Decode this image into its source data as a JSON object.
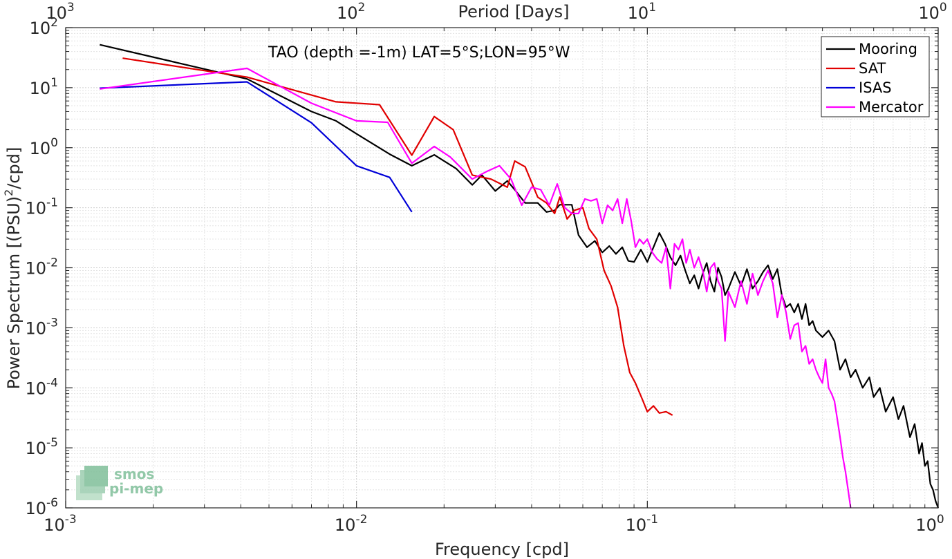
{
  "chart_data": {
    "type": "line",
    "title": "TAO (depth =-1m) LAT=5°S;LON=95°W",
    "xlabel": "Frequency [cpd]",
    "ylabel_main": "Power Spectrum [(PSU)",
    "ylabel_sup": "2",
    "ylabel_tail": "/cpd]",
    "top_xlabel": "Period [Days]",
    "x_scale": "log",
    "y_scale": "log",
    "xlim": [
      0.001,
      1
    ],
    "ylim": [
      1e-06,
      100
    ],
    "grid": true,
    "legend_position": "top-right",
    "x_ticks": [
      {
        "value": 0.001,
        "base": "10",
        "exp": "-3"
      },
      {
        "value": 0.01,
        "base": "10",
        "exp": "-2"
      },
      {
        "value": 0.1,
        "base": "10",
        "exp": "-1"
      },
      {
        "value": 1,
        "base": "10",
        "exp": "0"
      }
    ],
    "y_ticks": [
      {
        "value": 100,
        "base": "10",
        "exp": "2"
      },
      {
        "value": 10,
        "base": "10",
        "exp": "1"
      },
      {
        "value": 1,
        "base": "10",
        "exp": "0"
      },
      {
        "value": 0.1,
        "base": "10",
        "exp": "-1"
      },
      {
        "value": 0.01,
        "base": "10",
        "exp": "-2"
      },
      {
        "value": 0.001,
        "base": "10",
        "exp": "-3"
      },
      {
        "value": 0.0001,
        "base": "10",
        "exp": "-4"
      },
      {
        "value": 1e-05,
        "base": "10",
        "exp": "-5"
      },
      {
        "value": 1e-06,
        "base": "10",
        "exp": "-6"
      }
    ],
    "top_ticks": [
      {
        "value": 0.001,
        "base": "10",
        "exp": "3"
      },
      {
        "value": 0.01,
        "base": "10",
        "exp": "2"
      },
      {
        "value": 0.1,
        "base": "10",
        "exp": "1"
      },
      {
        "value": 1,
        "base": "10",
        "exp": "0"
      }
    ],
    "series": [
      {
        "name": "Mooring",
        "color": "#000000",
        "points": [
          [
            0.00131,
            52
          ],
          [
            0.0042,
            14
          ],
          [
            0.007,
            4.0
          ],
          [
            0.0085,
            2.8
          ],
          [
            0.01,
            1.7
          ],
          [
            0.013,
            0.78
          ],
          [
            0.0155,
            0.5
          ],
          [
            0.0185,
            0.76
          ],
          [
            0.022,
            0.45
          ],
          [
            0.025,
            0.24
          ],
          [
            0.027,
            0.35
          ],
          [
            0.03,
            0.19
          ],
          [
            0.033,
            0.28
          ],
          [
            0.035,
            0.2
          ],
          [
            0.038,
            0.12
          ],
          [
            0.042,
            0.12
          ],
          [
            0.045,
            0.085
          ],
          [
            0.048,
            0.09
          ],
          [
            0.05,
            0.112
          ],
          [
            0.055,
            0.112
          ],
          [
            0.058,
            0.035
          ],
          [
            0.062,
            0.022
          ],
          [
            0.066,
            0.028
          ],
          [
            0.07,
            0.018
          ],
          [
            0.074,
            0.023
          ],
          [
            0.078,
            0.017
          ],
          [
            0.082,
            0.022
          ],
          [
            0.086,
            0.013
          ],
          [
            0.09,
            0.0125
          ],
          [
            0.095,
            0.02
          ],
          [
            0.1,
            0.0125
          ],
          [
            0.105,
            0.022
          ],
          [
            0.11,
            0.038
          ],
          [
            0.115,
            0.025
          ],
          [
            0.12,
            0.015
          ],
          [
            0.125,
            0.011
          ],
          [
            0.13,
            0.016
          ],
          [
            0.135,
            0.009
          ],
          [
            0.14,
            0.0055
          ],
          [
            0.145,
            0.0075
          ],
          [
            0.15,
            0.0045
          ],
          [
            0.155,
            0.008
          ],
          [
            0.16,
            0.012
          ],
          [
            0.165,
            0.006
          ],
          [
            0.17,
            0.004
          ],
          [
            0.175,
            0.01
          ],
          [
            0.18,
            0.007
          ],
          [
            0.185,
            0.0035
          ],
          [
            0.19,
            0.0045
          ],
          [
            0.2,
            0.0085
          ],
          [
            0.21,
            0.005
          ],
          [
            0.22,
            0.0095
          ],
          [
            0.23,
            0.0045
          ],
          [
            0.24,
            0.006
          ],
          [
            0.25,
            0.0085
          ],
          [
            0.26,
            0.011
          ],
          [
            0.27,
            0.0065
          ],
          [
            0.28,
            0.0095
          ],
          [
            0.29,
            0.0035
          ],
          [
            0.3,
            0.0022
          ],
          [
            0.31,
            0.0025
          ],
          [
            0.32,
            0.0018
          ],
          [
            0.33,
            0.0025
          ],
          [
            0.34,
            0.0014
          ],
          [
            0.35,
            0.0025
          ],
          [
            0.36,
            0.0011
          ],
          [
            0.37,
            0.0013
          ],
          [
            0.38,
            0.0009
          ],
          [
            0.4,
            0.0007
          ],
          [
            0.42,
            0.0009
          ],
          [
            0.44,
            0.0006
          ],
          [
            0.46,
            0.0002
          ],
          [
            0.48,
            0.0003
          ],
          [
            0.5,
            0.00015
          ],
          [
            0.52,
            0.0002
          ],
          [
            0.55,
            0.0001
          ],
          [
            0.58,
            0.00015
          ],
          [
            0.6,
            7e-05
          ],
          [
            0.63,
            0.0001
          ],
          [
            0.66,
            4e-05
          ],
          [
            0.7,
            7e-05
          ],
          [
            0.73,
            3e-05
          ],
          [
            0.76,
            5e-05
          ],
          [
            0.8,
            1.5e-05
          ],
          [
            0.83,
            2.5e-05
          ],
          [
            0.86,
            8e-06
          ],
          [
            0.88,
            1.2e-05
          ],
          [
            0.9,
            5e-06
          ],
          [
            0.92,
            6e-06
          ],
          [
            0.94,
            2.5e-06
          ],
          [
            0.96,
            2e-06
          ],
          [
            0.98,
            1.3e-06
          ],
          [
            1.0,
            1e-06
          ]
        ]
      },
      {
        "name": "SAT",
        "color": "#e10000",
        "points": [
          [
            0.00157,
            31
          ],
          [
            0.0042,
            15
          ],
          [
            0.0085,
            5.8
          ],
          [
            0.012,
            5.2
          ],
          [
            0.0155,
            0.75
          ],
          [
            0.0185,
            3.3
          ],
          [
            0.0215,
            2.0
          ],
          [
            0.025,
            0.35
          ],
          [
            0.029,
            0.3
          ],
          [
            0.033,
            0.22
          ],
          [
            0.035,
            0.6
          ],
          [
            0.038,
            0.48
          ],
          [
            0.042,
            0.15
          ],
          [
            0.045,
            0.12
          ],
          [
            0.048,
            0.08
          ],
          [
            0.05,
            0.15
          ],
          [
            0.053,
            0.065
          ],
          [
            0.056,
            0.09
          ],
          [
            0.06,
            0.1
          ],
          [
            0.063,
            0.045
          ],
          [
            0.067,
            0.03
          ],
          [
            0.071,
            0.009
          ],
          [
            0.075,
            0.005
          ],
          [
            0.079,
            0.0022
          ],
          [
            0.083,
            0.0005
          ],
          [
            0.087,
            0.00018
          ],
          [
            0.091,
            0.00012
          ],
          [
            0.096,
            6.5e-05
          ],
          [
            0.1,
            4e-05
          ],
          [
            0.105,
            5e-05
          ],
          [
            0.11,
            3.8e-05
          ],
          [
            0.116,
            4e-05
          ],
          [
            0.122,
            3.5e-05
          ]
        ]
      },
      {
        "name": "ISAS",
        "color": "#0000d8",
        "points": [
          [
            0.00131,
            9.8
          ],
          [
            0.0042,
            12.5
          ],
          [
            0.007,
            2.6
          ],
          [
            0.01,
            0.5
          ],
          [
            0.013,
            0.32
          ],
          [
            0.0155,
            0.085
          ]
        ]
      },
      {
        "name": "Mercator",
        "color": "#ff00ff",
        "points": [
          [
            0.00131,
            9.5
          ],
          [
            0.0042,
            21
          ],
          [
            0.007,
            5.5
          ],
          [
            0.01,
            2.8
          ],
          [
            0.0128,
            2.65
          ],
          [
            0.0155,
            0.55
          ],
          [
            0.0185,
            1.05
          ],
          [
            0.021,
            0.7
          ],
          [
            0.025,
            0.3
          ],
          [
            0.028,
            0.4
          ],
          [
            0.031,
            0.5
          ],
          [
            0.034,
            0.3
          ],
          [
            0.037,
            0.11
          ],
          [
            0.04,
            0.22
          ],
          [
            0.043,
            0.2
          ],
          [
            0.046,
            0.11
          ],
          [
            0.049,
            0.25
          ],
          [
            0.052,
            0.1
          ],
          [
            0.055,
            0.08
          ],
          [
            0.058,
            0.08
          ],
          [
            0.061,
            0.14
          ],
          [
            0.064,
            0.13
          ],
          [
            0.067,
            0.14
          ],
          [
            0.07,
            0.055
          ],
          [
            0.073,
            0.11
          ],
          [
            0.076,
            0.09
          ],
          [
            0.079,
            0.14
          ],
          [
            0.082,
            0.055
          ],
          [
            0.085,
            0.14
          ],
          [
            0.088,
            0.06
          ],
          [
            0.091,
            0.022
          ],
          [
            0.094,
            0.03
          ],
          [
            0.097,
            0.025
          ],
          [
            0.1,
            0.03
          ],
          [
            0.104,
            0.018
          ],
          [
            0.108,
            0.014
          ],
          [
            0.112,
            0.012
          ],
          [
            0.116,
            0.022
          ],
          [
            0.12,
            0.0045
          ],
          [
            0.124,
            0.025
          ],
          [
            0.128,
            0.02
          ],
          [
            0.132,
            0.03
          ],
          [
            0.136,
            0.012
          ],
          [
            0.14,
            0.02
          ],
          [
            0.145,
            0.01
          ],
          [
            0.15,
            0.015
          ],
          [
            0.155,
            0.009
          ],
          [
            0.16,
            0.004
          ],
          [
            0.165,
            0.01
          ],
          [
            0.17,
            0.012
          ],
          [
            0.175,
            0.006
          ],
          [
            0.18,
            0.0045
          ],
          [
            0.185,
            0.0006
          ],
          [
            0.19,
            0.004
          ],
          [
            0.2,
            0.0022
          ],
          [
            0.21,
            0.006
          ],
          [
            0.22,
            0.0025
          ],
          [
            0.23,
            0.008
          ],
          [
            0.24,
            0.0035
          ],
          [
            0.25,
            0.006
          ],
          [
            0.26,
            0.009
          ],
          [
            0.27,
            0.0055
          ],
          [
            0.28,
            0.0015
          ],
          [
            0.29,
            0.0035
          ],
          [
            0.3,
            0.0018
          ],
          [
            0.31,
            0.00065
          ],
          [
            0.32,
            0.0011
          ],
          [
            0.33,
            0.0012
          ],
          [
            0.34,
            0.0004
          ],
          [
            0.35,
            0.0005
          ],
          [
            0.36,
            0.00025
          ],
          [
            0.37,
            0.0003
          ],
          [
            0.38,
            0.0002
          ],
          [
            0.39,
            0.00015
          ],
          [
            0.4,
            0.00012
          ],
          [
            0.41,
            0.0003
          ],
          [
            0.42,
            0.0001
          ],
          [
            0.43,
            8e-05
          ],
          [
            0.44,
            6e-05
          ],
          [
            0.45,
            3e-05
          ],
          [
            0.46,
            1.5e-05
          ],
          [
            0.47,
            7e-06
          ],
          [
            0.48,
            4e-06
          ],
          [
            0.49,
            2e-06
          ],
          [
            0.5,
            1e-06
          ]
        ]
      }
    ]
  },
  "logo": {
    "line1": "smos",
    "line2": "pi-mep"
  }
}
